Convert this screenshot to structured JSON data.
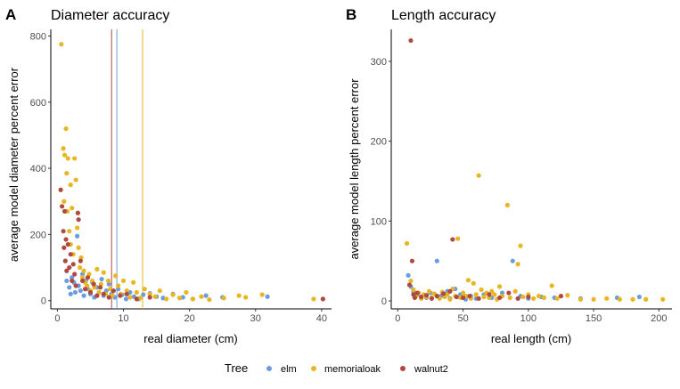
{
  "colors": {
    "elm": "#6a9de0",
    "memorialoak": "#e8b523",
    "walnut2": "#b04a40"
  },
  "legend": {
    "title": "Tree",
    "items": [
      {
        "label": "elm",
        "color": "#6a9de0"
      },
      {
        "label": "memorialoak",
        "color": "#e8b523"
      },
      {
        "label": "walnut2",
        "color": "#b04a40"
      }
    ]
  },
  "chart_data": [
    {
      "panel": "A",
      "type": "scatter",
      "title": "Diameter accuracy",
      "xlabel": "real diameter (cm)",
      "ylabel": "average model diameter percent error",
      "xlim": [
        -1,
        41.5
      ],
      "ylim": [
        -25,
        820
      ],
      "xticks": [
        0,
        10,
        20,
        30,
        40
      ],
      "yticks": [
        0,
        200,
        400,
        600,
        800
      ],
      "vlines": [
        {
          "series": "walnut2",
          "x": 8.2
        },
        {
          "series": "elm",
          "x": 9.0
        },
        {
          "series": "memorialoak",
          "x": 12.9
        }
      ],
      "series": [
        {
          "name": "elm",
          "points": [
            [
              1.4,
              60
            ],
            [
              1.8,
              40
            ],
            [
              2.0,
              20
            ],
            [
              2.2,
              70
            ],
            [
              2.5,
              55
            ],
            [
              2.7,
              25
            ],
            [
              3.0,
              195
            ],
            [
              3.2,
              45
            ],
            [
              3.5,
              30
            ],
            [
              3.8,
              80
            ],
            [
              4.0,
              15
            ],
            [
              4.3,
              60
            ],
            [
              4.6,
              35
            ],
            [
              5.0,
              20
            ],
            [
              5.3,
              55
            ],
            [
              5.6,
              10
            ],
            [
              6.0,
              40
            ],
            [
              6.3,
              25
            ],
            [
              6.7,
              65
            ],
            [
              7.0,
              15
            ],
            [
              7.4,
              30
            ],
            [
              7.8,
              50
            ],
            [
              8.2,
              20
            ],
            [
              8.7,
              10
            ],
            [
              9.2,
              35
            ],
            [
              9.8,
              18
            ],
            [
              10.4,
              5
            ],
            [
              11.0,
              25
            ],
            [
              11.6,
              12
            ],
            [
              12.3,
              5
            ],
            [
              13.0,
              18
            ],
            [
              14.0,
              22
            ],
            [
              15.0,
              12
            ],
            [
              16.0,
              8
            ],
            [
              17.5,
              20
            ],
            [
              19.0,
              10
            ],
            [
              20.5,
              5
            ],
            [
              22.5,
              15
            ],
            [
              25.0,
              10
            ],
            [
              31.8,
              12
            ]
          ]
        },
        {
          "name": "memorialoak",
          "points": [
            [
              0.6,
              775
            ],
            [
              0.9,
              460
            ],
            [
              1.0,
              300
            ],
            [
              1.1,
              440
            ],
            [
              1.3,
              520
            ],
            [
              1.4,
              385
            ],
            [
              1.5,
              270
            ],
            [
              1.6,
              430
            ],
            [
              1.8,
              210
            ],
            [
              2.0,
              350
            ],
            [
              2.0,
              170
            ],
            [
              2.2,
              280
            ],
            [
              2.4,
              140
            ],
            [
              2.6,
              430
            ],
            [
              2.8,
              365
            ],
            [
              3.0,
              220
            ],
            [
              3.2,
              160
            ],
            [
              3.4,
              100
            ],
            [
              3.6,
              130
            ],
            [
              3.8,
              70
            ],
            [
              4.0,
              90
            ],
            [
              4.2,
              55
            ],
            [
              4.5,
              45
            ],
            [
              4.8,
              80
            ],
            [
              5.0,
              30
            ],
            [
              5.3,
              60
            ],
            [
              5.6,
              40
            ],
            [
              6.0,
              95
            ],
            [
              6.3,
              25
            ],
            [
              6.6,
              50
            ],
            [
              7.0,
              85
            ],
            [
              7.3,
              20
            ],
            [
              7.7,
              60
            ],
            [
              8.0,
              35
            ],
            [
              8.3,
              15
            ],
            [
              8.8,
              75
            ],
            [
              9.2,
              45
            ],
            [
              9.6,
              20
            ],
            [
              10.0,
              60
            ],
            [
              10.5,
              30
            ],
            [
              11.0,
              10
            ],
            [
              11.5,
              55
            ],
            [
              12.0,
              25
            ],
            [
              12.5,
              8
            ],
            [
              13.2,
              35
            ],
            [
              14.0,
              20
            ],
            [
              14.8,
              12
            ],
            [
              15.5,
              30
            ],
            [
              16.5,
              5
            ],
            [
              17.5,
              18
            ],
            [
              18.5,
              8
            ],
            [
              19.5,
              25
            ],
            [
              20.5,
              5
            ],
            [
              21.8,
              12
            ],
            [
              23.0,
              3
            ],
            [
              25.2,
              8
            ],
            [
              27.5,
              15
            ],
            [
              28.5,
              10
            ],
            [
              31.0,
              18
            ],
            [
              38.8,
              5
            ]
          ]
        },
        {
          "name": "walnut2",
          "points": [
            [
              0.5,
              335
            ],
            [
              0.7,
              285
            ],
            [
              0.9,
              210
            ],
            [
              1.0,
              160
            ],
            [
              1.1,
              270
            ],
            [
              1.2,
              120
            ],
            [
              1.3,
              185
            ],
            [
              1.4,
              90
            ],
            [
              1.6,
              170
            ],
            [
              1.8,
              100
            ],
            [
              2.0,
              140
            ],
            [
              2.2,
              60
            ],
            [
              2.4,
              110
            ],
            [
              2.6,
              80
            ],
            [
              2.8,
              45
            ],
            [
              3.1,
              265
            ],
            [
              3.2,
              245
            ],
            [
              3.5,
              120
            ],
            [
              3.8,
              60
            ],
            [
              4.2,
              35
            ],
            [
              4.6,
              70
            ],
            [
              5.0,
              25
            ],
            [
              5.5,
              50
            ],
            [
              6.0,
              15
            ],
            [
              6.5,
              40
            ],
            [
              7.0,
              20
            ],
            [
              7.8,
              10
            ],
            [
              8.5,
              30
            ],
            [
              9.5,
              15
            ],
            [
              10.5,
              20
            ],
            [
              12.0,
              5
            ],
            [
              14.0,
              10
            ],
            [
              40.2,
              5
            ]
          ]
        }
      ]
    },
    {
      "panel": "B",
      "type": "scatter",
      "title": "Length accuracy",
      "xlabel": "real length (cm)",
      "ylabel": "average model length percent error",
      "xlim": [
        -5,
        210
      ],
      "ylim": [
        -10,
        340
      ],
      "xticks": [
        0,
        50,
        100,
        150,
        200
      ],
      "yticks": [
        0,
        100,
        200,
        300
      ],
      "series": [
        {
          "name": "elm",
          "points": [
            [
              8,
              32
            ],
            [
              10,
              18
            ],
            [
              12,
              12
            ],
            [
              15,
              8
            ],
            [
              18,
              5
            ],
            [
              22,
              4
            ],
            [
              25,
              10
            ],
            [
              30,
              50
            ],
            [
              33,
              6
            ],
            [
              38,
              12
            ],
            [
              40,
              3
            ],
            [
              44,
              15
            ],
            [
              48,
              8
            ],
            [
              52,
              2
            ],
            [
              56,
              6
            ],
            [
              60,
              3
            ],
            [
              66,
              8
            ],
            [
              72,
              4
            ],
            [
              80,
              10
            ],
            [
              88,
              50
            ],
            [
              94,
              6
            ],
            [
              100,
              3
            ],
            [
              110,
              5
            ],
            [
              120,
              4
            ],
            [
              140,
              3
            ],
            [
              168,
              4
            ],
            [
              185,
              5
            ]
          ]
        },
        {
          "name": "memorialoak",
          "points": [
            [
              7,
              72
            ],
            [
              10,
              25
            ],
            [
              12,
              14
            ],
            [
              14,
              6
            ],
            [
              16,
              10
            ],
            [
              18,
              3
            ],
            [
              20,
              8
            ],
            [
              22,
              5
            ],
            [
              24,
              12
            ],
            [
              26,
              4
            ],
            [
              28,
              9
            ],
            [
              30,
              6
            ],
            [
              32,
              3
            ],
            [
              34,
              11
            ],
            [
              36,
              5
            ],
            [
              38,
              8
            ],
            [
              40,
              2
            ],
            [
              42,
              15
            ],
            [
              44,
              6
            ],
            [
              46,
              78
            ],
            [
              48,
              4
            ],
            [
              50,
              10
            ],
            [
              52,
              6
            ],
            [
              54,
              26
            ],
            [
              56,
              3
            ],
            [
              58,
              22
            ],
            [
              60,
              8
            ],
            [
              62,
              157
            ],
            [
              64,
              14
            ],
            [
              66,
              5
            ],
            [
              68,
              10
            ],
            [
              70,
              4
            ],
            [
              72,
              12
            ],
            [
              74,
              8
            ],
            [
              76,
              2
            ],
            [
              78,
              18
            ],
            [
              80,
              6
            ],
            [
              84,
              120
            ],
            [
              86,
              4
            ],
            [
              90,
              12
            ],
            [
              92,
              46
            ],
            [
              94,
              69
            ],
            [
              96,
              5
            ],
            [
              100,
              8
            ],
            [
              104,
              3
            ],
            [
              108,
              6
            ],
            [
              112,
              4
            ],
            [
              118,
              19
            ],
            [
              122,
              3
            ],
            [
              130,
              7
            ],
            [
              140,
              2
            ],
            [
              150,
              2
            ],
            [
              160,
              3
            ],
            [
              170,
              2
            ],
            [
              180,
              2
            ],
            [
              190,
              2
            ],
            [
              203,
              2
            ]
          ]
        },
        {
          "name": "walnut2",
          "points": [
            [
              9,
              20
            ],
            [
              10,
              326
            ],
            [
              11,
              50
            ],
            [
              12,
              8
            ],
            [
              13,
              4
            ],
            [
              15,
              10
            ],
            [
              18,
              5
            ],
            [
              22,
              7
            ],
            [
              26,
              3
            ],
            [
              30,
              6
            ],
            [
              35,
              9
            ],
            [
              40,
              12
            ],
            [
              42,
              77
            ],
            [
              45,
              5
            ],
            [
              50,
              4
            ],
            [
              55,
              6
            ],
            [
              62,
              3
            ],
            [
              70,
              8
            ],
            [
              78,
              4
            ],
            [
              85,
              10
            ],
            [
              92,
              3
            ],
            [
              100,
              5
            ],
            [
              125,
              6
            ]
          ]
        }
      ]
    }
  ]
}
